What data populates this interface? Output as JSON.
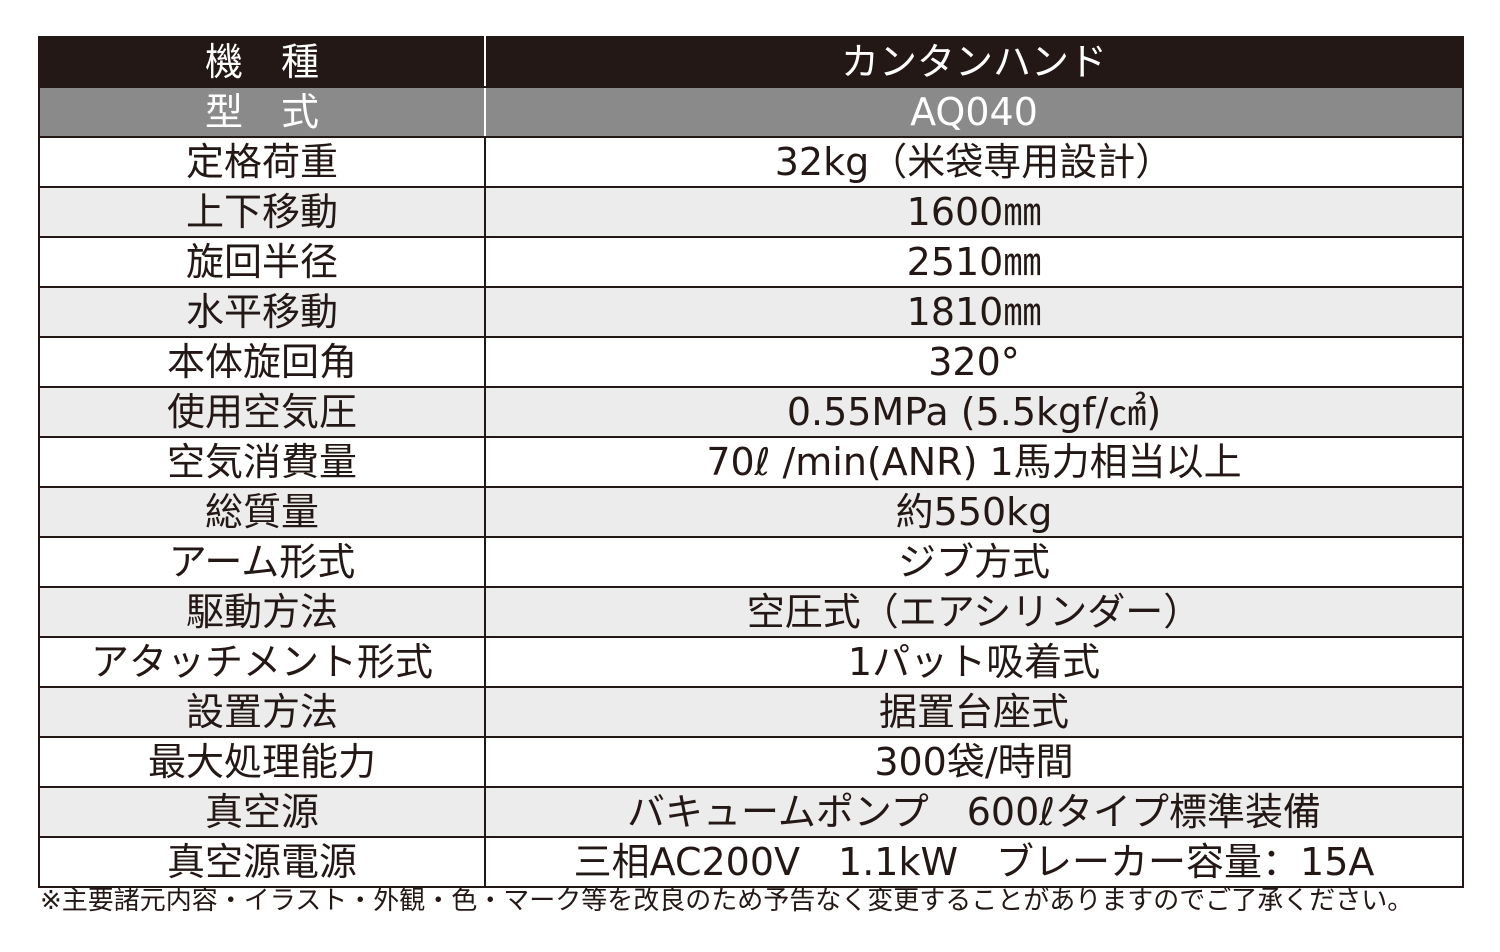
{
  "header": {
    "model_label": "機　種",
    "model_value": "カンタンハンド",
    "type_label": "型　式",
    "type_value": "AQ040"
  },
  "specs": [
    {
      "label": "定格荷重",
      "value": "32kg（米袋専用設計）"
    },
    {
      "label": "上下移動",
      "value": "1600㎜"
    },
    {
      "label": "旋回半径",
      "value": "2510㎜"
    },
    {
      "label": "水平移動",
      "value": "1810㎜"
    },
    {
      "label": "本体旋回角",
      "value": "320°"
    },
    {
      "label": "使用空気圧",
      "value": "0.55MPa (5.5kgf/㎠)"
    },
    {
      "label": "空気消費量",
      "value": "70ℓ /min(ANR) 1馬力相当以上"
    },
    {
      "label": "総質量",
      "value": "約550kg"
    },
    {
      "label": "アーム形式",
      "value": "ジブ方式"
    },
    {
      "label": "駆動方法",
      "value": "空圧式（エアシリンダー）"
    },
    {
      "label": "アタッチメント形式",
      "value": "1パット吸着式"
    },
    {
      "label": "設置方法",
      "value": "据置台座式"
    },
    {
      "label": "最大処理能力",
      "value": "300袋/時間"
    },
    {
      "label": "真空源",
      "value": "バキュームポンプ　600ℓタイプ標準装備"
    },
    {
      "label": "真空源電源",
      "value": "三相AC200V　1.1kW　ブレーカー容量：15A"
    }
  ],
  "footnote": "※主要諸元内容・イラスト・外観・色・マーク等を改良のため予告なく変更することがありますのでご了承ください。",
  "colors": {
    "header_bg": "#231815",
    "type_row_bg": "#8a8a8a",
    "alt_row_bg": "#ececec",
    "text": "#231815"
  }
}
